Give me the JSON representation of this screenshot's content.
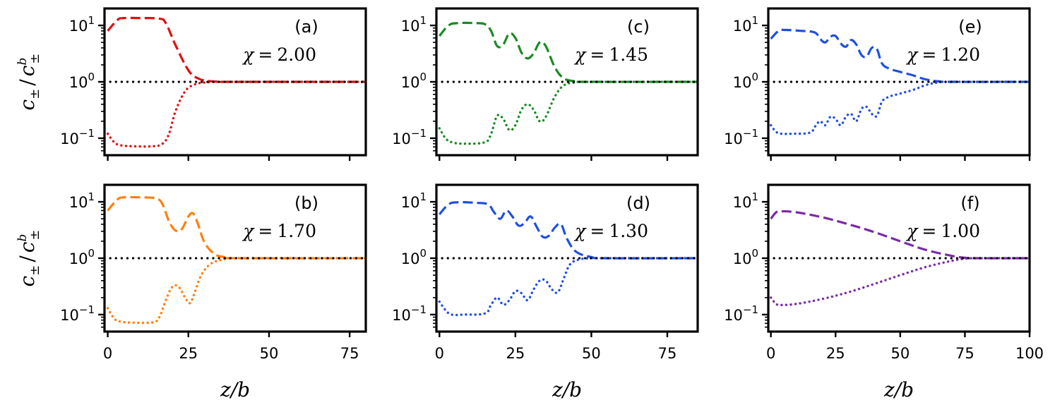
{
  "figure": {
    "xlabel": "z/b",
    "ylabel": "c± / c±^b",
    "ylabel_main": "c",
    "ylabel_sub": "±",
    "ylabel_sup": "b",
    "ylabel_slash": "/",
    "xlabel_main": "z/b",
    "ytick_labels": [
      {
        "base": "10",
        "exp": "1"
      },
      {
        "base": "10",
        "exp": "0"
      },
      {
        "base": "10",
        "exp": "−1"
      }
    ],
    "chi_symbol": "χ",
    "equals": "="
  },
  "chart_data": [
    {
      "type": "line",
      "label": "(a)",
      "chi": "2.00",
      "color": "#dd1111",
      "yscale": "log",
      "ylim": [
        0.05,
        20
      ],
      "xlim": [
        -1,
        80
      ],
      "xticks": [
        0,
        25,
        50,
        75
      ],
      "xtick_labels": [
        "0",
        "25",
        "50",
        "75"
      ],
      "series": [
        {
          "name": "c+ / c+^b",
          "style": "dashed",
          "x": [
            0,
            3,
            5,
            10,
            16,
            18,
            21,
            25,
            28,
            31,
            35,
            40,
            80
          ],
          "y": [
            8,
            12.5,
            13.5,
            13.5,
            13.2,
            11,
            4.5,
            1.6,
            1.15,
            1.04,
            1.0,
            1.0,
            1.0
          ]
        },
        {
          "name": "c- / c-^b",
          "style": "dotted",
          "x": [
            0,
            2,
            4,
            8,
            14,
            17,
            19,
            21,
            24,
            27,
            30,
            34,
            40,
            80
          ],
          "y": [
            0.12,
            0.085,
            0.075,
            0.072,
            0.072,
            0.08,
            0.12,
            0.3,
            0.68,
            0.9,
            0.97,
            1.0,
            1.0,
            1.0
          ]
        },
        {
          "name": "reference",
          "style": "dotted-black",
          "x": [
            -1,
            80
          ],
          "y": [
            1,
            1
          ]
        }
      ]
    },
    {
      "type": "line",
      "label": "(b)",
      "chi": "1.70",
      "color": "#ff7f0e",
      "yscale": "log",
      "ylim": [
        0.05,
        20
      ],
      "xlim": [
        -1,
        80
      ],
      "xticks": [
        0,
        25,
        50,
        75
      ],
      "xtick_labels": [
        "0",
        "25",
        "50",
        "75"
      ],
      "series": [
        {
          "name": "c+ / c+^b",
          "style": "dashed",
          "x": [
            0,
            3,
            5,
            10,
            15,
            17,
            19,
            21,
            23,
            25,
            26.5,
            28,
            30,
            33,
            36,
            40,
            80
          ],
          "y": [
            7,
            11,
            12,
            12,
            11.5,
            9,
            4.5,
            3.1,
            3.3,
            5.5,
            6.2,
            4.0,
            1.9,
            1.2,
            1.05,
            1.0,
            1.0
          ]
        },
        {
          "name": "c- / c-^b",
          "style": "dotted",
          "x": [
            0,
            2,
            4,
            8,
            14,
            16,
            18,
            20,
            22,
            24,
            25.5,
            27,
            29,
            32,
            36,
            40,
            80
          ],
          "y": [
            0.13,
            0.085,
            0.075,
            0.072,
            0.073,
            0.09,
            0.18,
            0.31,
            0.31,
            0.2,
            0.16,
            0.25,
            0.5,
            0.8,
            0.95,
            1.0,
            1.0
          ]
        },
        {
          "name": "reference",
          "style": "dotted-black",
          "x": [
            -1,
            80
          ],
          "y": [
            1,
            1
          ]
        }
      ]
    },
    {
      "type": "line",
      "label": "(c)",
      "chi": "1.45",
      "color": "#1a8a22",
      "yscale": "log",
      "ylim": [
        0.05,
        20
      ],
      "xlim": [
        -1,
        85
      ],
      "xticks": [
        0,
        25,
        50,
        75
      ],
      "xtick_labels": [
        "0",
        "25",
        "50",
        "75"
      ],
      "series": [
        {
          "name": "c+ / c+^b",
          "style": "dashed",
          "x": [
            0,
            3,
            6,
            12,
            15,
            17,
            19,
            21,
            23,
            25,
            27,
            29,
            31,
            33,
            35,
            38,
            41,
            45,
            50,
            85
          ],
          "y": [
            6.5,
            10,
            11,
            11,
            10.5,
            8,
            4.3,
            4.6,
            7.2,
            6,
            3.3,
            2.6,
            3.2,
            5,
            4.3,
            1.8,
            1.15,
            1.02,
            1.0,
            1.0
          ]
        },
        {
          "name": "c- / c-^b",
          "style": "dotted",
          "x": [
            0,
            2,
            4,
            8,
            15,
            17,
            19,
            21,
            23,
            25,
            27,
            29,
            31,
            33,
            35,
            38,
            41,
            45,
            50,
            85
          ],
          "y": [
            0.15,
            0.1,
            0.085,
            0.08,
            0.085,
            0.12,
            0.25,
            0.22,
            0.14,
            0.17,
            0.32,
            0.4,
            0.32,
            0.2,
            0.24,
            0.55,
            0.87,
            0.98,
            1.0,
            1.0
          ]
        },
        {
          "name": "reference",
          "style": "dotted-black",
          "x": [
            -1,
            85
          ],
          "y": [
            1,
            1
          ]
        }
      ]
    },
    {
      "type": "line",
      "label": "(d)",
      "chi": "1.30",
      "color": "#1f4fe0",
      "yscale": "log",
      "ylim": [
        0.05,
        20
      ],
      "xlim": [
        -1,
        85
      ],
      "xticks": [
        0,
        25,
        50,
        75
      ],
      "xtick_labels": [
        "0",
        "25",
        "50",
        "75"
      ],
      "series": [
        {
          "name": "c+ / c+^b",
          "style": "dashed",
          "x": [
            0,
            3,
            6,
            12,
            16,
            18,
            20,
            22,
            24,
            26,
            28,
            30,
            32,
            34,
            36,
            38,
            40,
            42,
            45,
            50,
            55,
            85
          ],
          "y": [
            6,
            9,
            9.8,
            9.6,
            9,
            6.5,
            5,
            7,
            5.5,
            3.8,
            4.2,
            5.5,
            3.6,
            2.4,
            2.5,
            3.5,
            4,
            2.2,
            1.3,
            1.05,
            1.0,
            1.0
          ]
        },
        {
          "name": "c- / c-^b",
          "style": "dotted",
          "x": [
            0,
            2,
            4,
            8,
            15,
            17,
            19,
            21,
            23,
            25,
            27,
            29,
            31,
            33,
            35,
            37,
            39,
            41,
            43,
            46,
            50,
            55,
            85
          ],
          "y": [
            0.17,
            0.12,
            0.1,
            0.1,
            0.105,
            0.15,
            0.2,
            0.15,
            0.18,
            0.26,
            0.24,
            0.18,
            0.28,
            0.4,
            0.4,
            0.28,
            0.25,
            0.45,
            0.78,
            0.95,
            1.0,
            1.0,
            1.0
          ]
        },
        {
          "name": "reference",
          "style": "dotted-black",
          "x": [
            -1,
            85
          ],
          "y": [
            1,
            1
          ]
        }
      ]
    },
    {
      "type": "line",
      "label": "(e)",
      "chi": "1.20",
      "color": "#1f4fe0",
      "yscale": "log",
      "ylim": [
        0.05,
        20
      ],
      "xlim": [
        -1,
        100
      ],
      "xticks": [
        0,
        25,
        50,
        75,
        100
      ],
      "xtick_labels": [
        "0",
        "25",
        "50",
        "75",
        "100"
      ],
      "series": [
        {
          "name": "c+ / c+^b",
          "style": "dashed",
          "x": [
            0,
            3,
            6,
            12,
            17,
            19,
            21,
            23,
            25,
            27,
            29,
            31,
            33,
            35,
            37,
            39,
            41,
            43,
            46,
            50,
            55,
            60,
            65,
            70,
            100
          ],
          "y": [
            5.8,
            8,
            8.3,
            8,
            7.5,
            5.8,
            5,
            6.3,
            6.5,
            4.8,
            4.2,
            5.5,
            4.6,
            3,
            2.8,
            4,
            3.8,
            2.1,
            1.7,
            1.5,
            1.3,
            1.1,
            1.02,
            1.0,
            1.0
          ]
        },
        {
          "name": "c- / c-^b",
          "style": "dotted",
          "x": [
            0,
            2,
            4,
            8,
            15,
            17,
            19,
            21,
            23,
            25,
            27,
            29,
            31,
            33,
            35,
            37,
            39,
            41,
            43,
            46,
            50,
            55,
            60,
            65,
            70,
            100
          ],
          "y": [
            0.17,
            0.13,
            0.12,
            0.12,
            0.125,
            0.16,
            0.2,
            0.17,
            0.24,
            0.22,
            0.17,
            0.24,
            0.27,
            0.2,
            0.33,
            0.36,
            0.27,
            0.25,
            0.45,
            0.55,
            0.62,
            0.72,
            0.88,
            0.98,
            1.0,
            1.0
          ]
        },
        {
          "name": "reference",
          "style": "dotted-black",
          "x": [
            -1,
            100
          ],
          "y": [
            1,
            1
          ]
        }
      ]
    },
    {
      "type": "line",
      "label": "(f)",
      "chi": "1.00",
      "color": "#7a2aa8",
      "yscale": "log",
      "ylim": [
        0.05,
        20
      ],
      "xlim": [
        -1,
        100
      ],
      "xticks": [
        0,
        25,
        50,
        75,
        100
      ],
      "xtick_labels": [
        "0",
        "25",
        "50",
        "75",
        "100"
      ],
      "series": [
        {
          "name": "c+ / c+^b",
          "style": "dashed",
          "x": [
            0,
            2,
            4,
            10,
            20,
            30,
            40,
            50,
            60,
            70,
            75,
            80,
            100
          ],
          "y": [
            5,
            6.5,
            6.8,
            6.5,
            5.3,
            4,
            2.9,
            2,
            1.4,
            1.1,
            1.02,
            1.0,
            1.0
          ]
        },
        {
          "name": "c- / c-^b",
          "style": "dotted",
          "x": [
            0,
            2,
            4,
            10,
            20,
            30,
            40,
            50,
            60,
            70,
            75,
            80,
            100
          ],
          "y": [
            0.2,
            0.155,
            0.148,
            0.155,
            0.19,
            0.25,
            0.35,
            0.5,
            0.7,
            0.9,
            0.98,
            1.0,
            1.0
          ]
        },
        {
          "name": "reference",
          "style": "dotted-black",
          "x": [
            -1,
            100
          ],
          "y": [
            1,
            1
          ]
        }
      ]
    }
  ]
}
